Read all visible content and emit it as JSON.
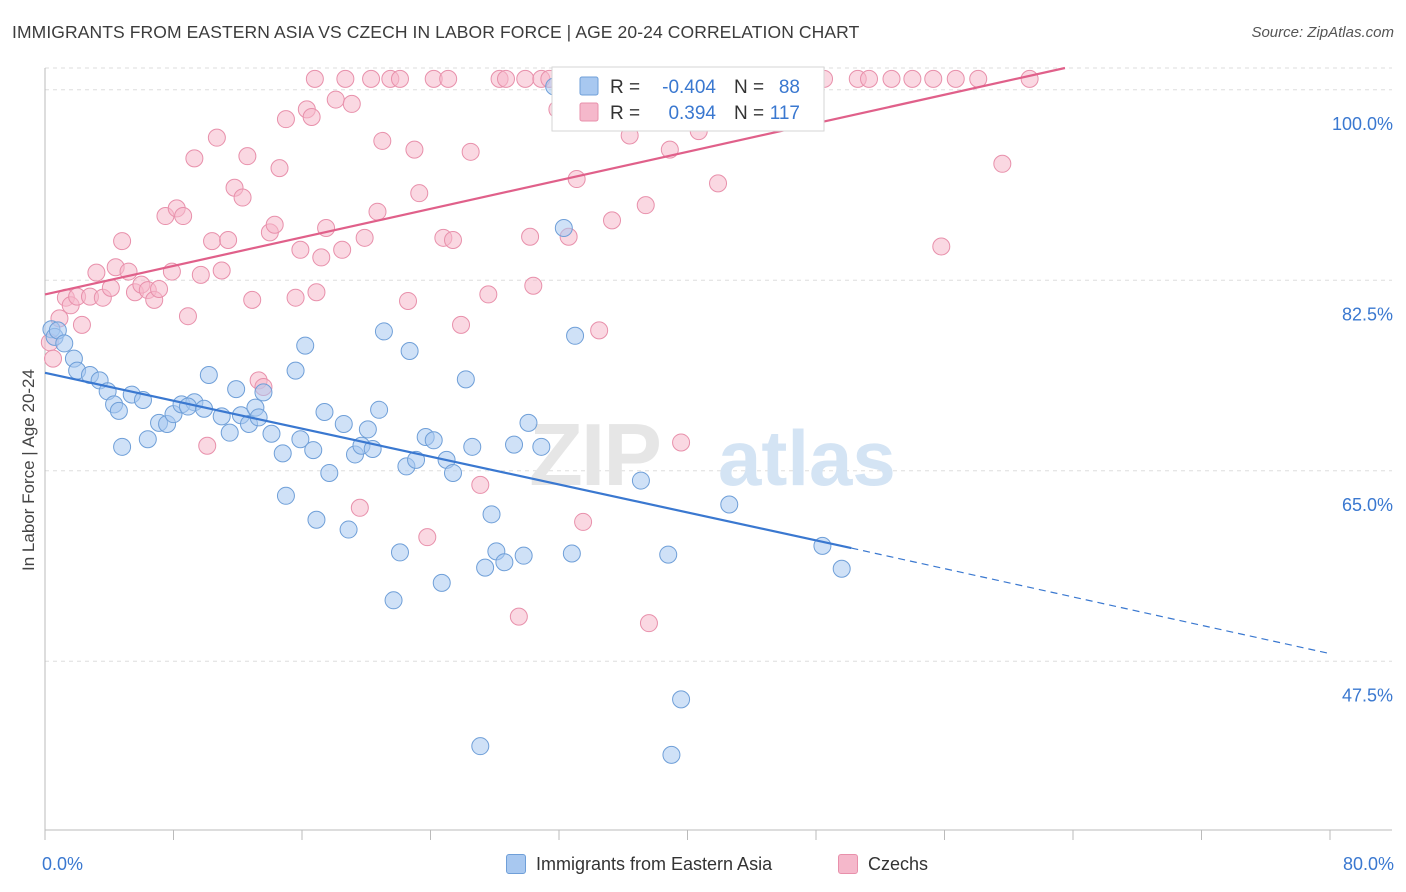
{
  "title": "IMMIGRANTS FROM EASTERN ASIA VS CZECH IN LABOR FORCE | AGE 20-24 CORRELATION CHART",
  "source": "Source: ZipAtlas.com",
  "watermark": {
    "part1": "ZIP",
    "part2": "atlas"
  },
  "colors": {
    "blue_fill": "#a8c8f0",
    "blue_stroke": "#6f9fd8",
    "blue_line": "#3a78d0",
    "pink_fill": "#f5b8cb",
    "pink_stroke": "#e890ab",
    "pink_line": "#e0608a",
    "axis_label": "#3a78d0",
    "grid": "#dddddd"
  },
  "legend_box": {
    "row1": {
      "r_label": "R =",
      "r_value": "-0.404",
      "n_label": "N =",
      "n_value": "88"
    },
    "row2": {
      "r_label": "R =",
      "r_value": "0.394",
      "n_label": "N =",
      "n_value": "117"
    }
  },
  "bottom_legend": {
    "series1": "Immigrants from Eastern Asia",
    "series2": "Czechs"
  },
  "chart_data": {
    "type": "scatter",
    "title": "IMMIGRANTS FROM EASTERN ASIA VS CZECH IN LABOR FORCE | AGE 20-24 CORRELATION CHART",
    "xlabel": "",
    "ylabel": "In Labor Force | Age 20-24",
    "xlim": [
      0,
      80
    ],
    "ylim": [
      32,
      102
    ],
    "x_tick_labels": [
      "0.0%",
      "80.0%"
    ],
    "y_ticks": [
      47.5,
      65.0,
      82.5,
      100.0
    ],
    "y_tick_labels": [
      "47.5%",
      "65.0%",
      "82.5%",
      "100.0%"
    ],
    "grid": true,
    "legend_position": "top-center",
    "series": [
      {
        "name": "Immigrants from Eastern Asia",
        "r": -0.404,
        "n": 88,
        "trend": {
          "x0": 0,
          "y0": 74.0,
          "x1": 50.2,
          "y1": 57.9,
          "dash_x1": 80,
          "dash_y1": 48.2
        },
        "points": [
          [
            0.4,
            78.0
          ],
          [
            0.6,
            77.3
          ],
          [
            0.8,
            77.9
          ],
          [
            1.2,
            76.7
          ],
          [
            1.8,
            75.3
          ],
          [
            2.0,
            74.2
          ],
          [
            2.8,
            73.8
          ],
          [
            3.4,
            73.3
          ],
          [
            3.9,
            72.3
          ],
          [
            4.3,
            71.1
          ],
          [
            4.6,
            70.5
          ],
          [
            5.4,
            72.0
          ],
          [
            6.1,
            71.5
          ],
          [
            4.8,
            67.2
          ],
          [
            6.4,
            67.9
          ],
          [
            7.1,
            69.4
          ],
          [
            7.6,
            69.3
          ],
          [
            8.0,
            70.2
          ],
          [
            8.5,
            71.1
          ],
          [
            9.3,
            71.3
          ],
          [
            8.9,
            70.9
          ],
          [
            9.9,
            70.7
          ],
          [
            10.2,
            73.8
          ],
          [
            11.0,
            70.0
          ],
          [
            11.5,
            68.5
          ],
          [
            11.9,
            72.5
          ],
          [
            12.2,
            70.1
          ],
          [
            12.7,
            69.3
          ],
          [
            13.1,
            70.8
          ],
          [
            13.3,
            69.9
          ],
          [
            13.6,
            72.2
          ],
          [
            14.1,
            68.4
          ],
          [
            14.8,
            66.6
          ],
          [
            15.0,
            62.7
          ],
          [
            15.6,
            74.2
          ],
          [
            15.9,
            67.9
          ],
          [
            16.2,
            76.5
          ],
          [
            16.7,
            66.9
          ],
          [
            16.9,
            60.5
          ],
          [
            17.4,
            70.4
          ],
          [
            17.7,
            64.8
          ],
          [
            18.6,
            69.3
          ],
          [
            18.9,
            59.6
          ],
          [
            19.3,
            66.5
          ],
          [
            19.7,
            67.3
          ],
          [
            20.1,
            68.8
          ],
          [
            20.4,
            67.0
          ],
          [
            20.8,
            70.6
          ],
          [
            21.1,
            77.8
          ],
          [
            21.7,
            53.1
          ],
          [
            22.1,
            57.5
          ],
          [
            22.5,
            65.4
          ],
          [
            22.7,
            76.0
          ],
          [
            23.1,
            66.0
          ],
          [
            23.7,
            68.1
          ],
          [
            24.2,
            67.8
          ],
          [
            24.7,
            54.7
          ],
          [
            25.0,
            66.0
          ],
          [
            25.4,
            64.8
          ],
          [
            26.2,
            73.4
          ],
          [
            26.6,
            67.2
          ],
          [
            27.4,
            56.1
          ],
          [
            27.8,
            61.0
          ],
          [
            28.1,
            57.6
          ],
          [
            28.6,
            56.6
          ],
          [
            29.2,
            67.4
          ],
          [
            29.8,
            57.2
          ],
          [
            30.1,
            69.4
          ],
          [
            30.9,
            67.2
          ],
          [
            31.7,
            100.3
          ],
          [
            32.3,
            87.3
          ],
          [
            32.8,
            57.4
          ],
          [
            33.0,
            77.4
          ],
          [
            37.1,
            64.1
          ],
          [
            38.8,
            57.3
          ],
          [
            39.6,
            44.0
          ],
          [
            39.0,
            38.9
          ],
          [
            42.6,
            61.9
          ],
          [
            48.4,
            58.1
          ],
          [
            49.6,
            56.0
          ],
          [
            27.1,
            39.7
          ]
        ]
      },
      {
        "name": "Czechs",
        "r": 0.394,
        "n": 117,
        "trend": {
          "x0": 0,
          "y0": 81.2,
          "x1": 63.5,
          "y1": 102.0
        },
        "points": [
          [
            0.3,
            76.8
          ],
          [
            0.5,
            75.3
          ],
          [
            0.9,
            79.0
          ],
          [
            1.3,
            80.9
          ],
          [
            1.6,
            80.2
          ],
          [
            2.0,
            81.0
          ],
          [
            2.3,
            78.4
          ],
          [
            2.8,
            81.0
          ],
          [
            3.2,
            83.2
          ],
          [
            3.6,
            80.9
          ],
          [
            4.1,
            81.8
          ],
          [
            4.4,
            83.7
          ],
          [
            4.8,
            86.1
          ],
          [
            5.2,
            83.3
          ],
          [
            5.6,
            81.4
          ],
          [
            6.0,
            82.1
          ],
          [
            6.4,
            81.6
          ],
          [
            6.8,
            80.7
          ],
          [
            7.1,
            81.7
          ],
          [
            7.5,
            88.4
          ],
          [
            7.9,
            83.3
          ],
          [
            8.2,
            89.1
          ],
          [
            8.6,
            88.4
          ],
          [
            8.9,
            79.2
          ],
          [
            9.3,
            93.7
          ],
          [
            9.7,
            83.0
          ],
          [
            10.1,
            67.3
          ],
          [
            10.4,
            86.1
          ],
          [
            10.7,
            95.6
          ],
          [
            11.0,
            83.4
          ],
          [
            11.4,
            86.2
          ],
          [
            11.8,
            91.0
          ],
          [
            12.3,
            90.1
          ],
          [
            12.6,
            93.9
          ],
          [
            12.9,
            80.7
          ],
          [
            13.3,
            73.3
          ],
          [
            13.6,
            72.7
          ],
          [
            14.0,
            86.9
          ],
          [
            14.3,
            87.6
          ],
          [
            14.6,
            92.8
          ],
          [
            15.0,
            97.3
          ],
          [
            15.6,
            80.9
          ],
          [
            15.9,
            85.3
          ],
          [
            16.3,
            98.2
          ],
          [
            16.6,
            97.5
          ],
          [
            16.9,
            81.4
          ],
          [
            17.2,
            84.6
          ],
          [
            17.5,
            87.3
          ],
          [
            16.8,
            101.0
          ],
          [
            18.1,
            99.1
          ],
          [
            18.5,
            85.3
          ],
          [
            18.7,
            101.0
          ],
          [
            19.1,
            98.7
          ],
          [
            19.6,
            61.6
          ],
          [
            19.9,
            86.4
          ],
          [
            20.3,
            101.0
          ],
          [
            20.7,
            88.8
          ],
          [
            21.0,
            95.3
          ],
          [
            21.5,
            101.0
          ],
          [
            22.1,
            101.0
          ],
          [
            22.6,
            80.6
          ],
          [
            23.0,
            94.5
          ],
          [
            23.3,
            90.5
          ],
          [
            23.8,
            58.9
          ],
          [
            24.2,
            101.0
          ],
          [
            24.8,
            86.4
          ],
          [
            25.1,
            101.0
          ],
          [
            25.4,
            86.2
          ],
          [
            25.9,
            78.4
          ],
          [
            26.5,
            94.3
          ],
          [
            27.1,
            63.7
          ],
          [
            27.6,
            81.2
          ],
          [
            28.3,
            101.0
          ],
          [
            28.7,
            101.0
          ],
          [
            29.5,
            51.6
          ],
          [
            29.9,
            101.0
          ],
          [
            30.4,
            82.0
          ],
          [
            30.9,
            101.0
          ],
          [
            31.4,
            101.0
          ],
          [
            31.9,
            98.2
          ],
          [
            32.6,
            86.5
          ],
          [
            33.1,
            91.8
          ],
          [
            33.5,
            60.3
          ],
          [
            34.1,
            101.0
          ],
          [
            34.5,
            77.9
          ],
          [
            35.3,
            88.0
          ],
          [
            35.9,
            101.0
          ],
          [
            36.4,
            95.8
          ],
          [
            36.9,
            101.0
          ],
          [
            37.6,
            51.0
          ],
          [
            38.2,
            101.0
          ],
          [
            38.9,
            94.5
          ],
          [
            39.6,
            67.6
          ],
          [
            40.0,
            101.0
          ],
          [
            40.7,
            96.2
          ],
          [
            41.3,
            101.0
          ],
          [
            41.9,
            91.4
          ],
          [
            42.4,
            101.0
          ],
          [
            43.4,
            101.0
          ],
          [
            44.1,
            101.0
          ],
          [
            45.1,
            101.0
          ],
          [
            46.3,
            101.0
          ],
          [
            47.2,
            101.0
          ],
          [
            48.5,
            101.0
          ],
          [
            50.6,
            101.0
          ],
          [
            51.3,
            101.0
          ],
          [
            52.7,
            101.0
          ],
          [
            54.0,
            101.0
          ],
          [
            55.3,
            101.0
          ],
          [
            55.8,
            85.6
          ],
          [
            56.7,
            101.0
          ],
          [
            58.1,
            101.0
          ],
          [
            59.6,
            93.2
          ],
          [
            61.3,
            101.0
          ],
          [
            30.2,
            86.5
          ],
          [
            37.4,
            89.4
          ]
        ]
      }
    ]
  }
}
